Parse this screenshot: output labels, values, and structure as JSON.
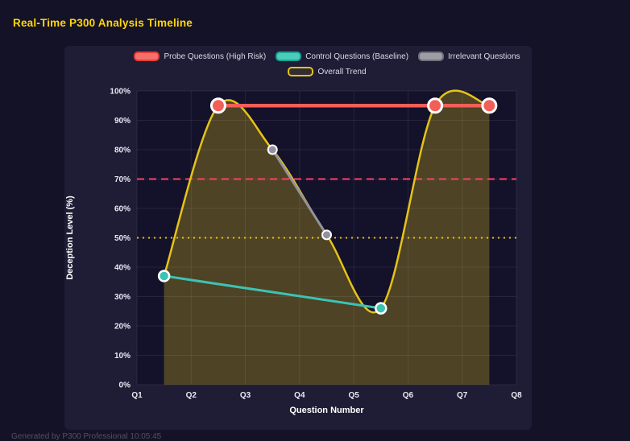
{
  "page": {
    "title": "Real-Time P300 Analysis Timeline",
    "footer": "Generated by P300 Professional  10:05:45"
  },
  "chart_data": {
    "type": "line",
    "title": "Real-Time P300 Analysis Timeline",
    "xlabel": "Question Number",
    "ylabel": "Deception Level (%)",
    "x_ticks": [
      "Q1",
      "Q2",
      "Q3",
      "Q4",
      "Q5",
      "Q6",
      "Q7",
      "Q8"
    ],
    "y_ticks": [
      "0%",
      "10%",
      "20%",
      "30%",
      "40%",
      "50%",
      "60%",
      "70%",
      "80%",
      "90%",
      "100%"
    ],
    "xlim": [
      1,
      8
    ],
    "ylim": [
      0,
      100
    ],
    "grid": true,
    "legend_position": "top",
    "background": {
      "page": "#141227",
      "panel": "#1f1c36",
      "plot": "#14112a"
    },
    "series": [
      {
        "name": "Probe Questions (High Risk)",
        "color": "#f25e58",
        "swatch_fill": "#f4716b",
        "swatch_border": "#e23d36",
        "smooth": false,
        "points": [
          [
            2.5,
            95
          ],
          [
            6.5,
            95
          ],
          [
            7.5,
            95
          ]
        ]
      },
      {
        "name": "Control Questions (Baseline)",
        "color": "#3cc3b3",
        "swatch_fill": "#4ccaba",
        "swatch_border": "#18a393",
        "smooth": false,
        "points": [
          [
            1.5,
            37
          ],
          [
            5.5,
            26
          ]
        ]
      },
      {
        "name": "Irrelevant Questions",
        "color": "#92929c",
        "swatch_fill": "#9d9da6",
        "swatch_border": "#70707a",
        "smooth": false,
        "points": [
          [
            3.5,
            80
          ],
          [
            4.5,
            51
          ]
        ]
      },
      {
        "name": "Overall Trend",
        "color": "#e5c417",
        "swatch_fill": "rgba(229,196,23,0.10)",
        "swatch_border": "#e5c417",
        "smooth": true,
        "area_fill": "rgba(229,196,23,0.28)",
        "points": [
          [
            1.5,
            37
          ],
          [
            2.5,
            95
          ],
          [
            3.5,
            80
          ],
          [
            4.5,
            51
          ],
          [
            5.5,
            26
          ],
          [
            6.5,
            95
          ],
          [
            7.5,
            95
          ]
        ]
      }
    ],
    "thresholds": [
      {
        "y": 70,
        "style": "dashed",
        "color": "#ff4163"
      },
      {
        "y": 50,
        "style": "dotted",
        "color": "#e5c417"
      }
    ]
  }
}
